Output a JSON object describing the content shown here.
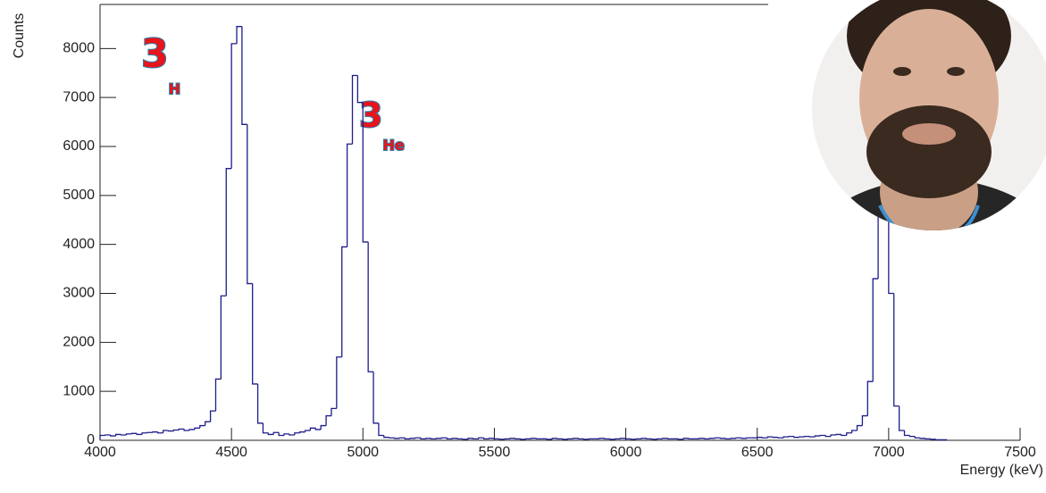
{
  "chart_data": {
    "type": "histogram",
    "ylabel": "Counts",
    "xlabel": "Energy (keV)",
    "annotations": [
      {
        "sup": "3",
        "text": "H"
      },
      {
        "sup": "3",
        "text": "He"
      }
    ],
    "color": "#1c1c8c",
    "bins": [
      4000,
      4020,
      4040,
      4060,
      4080,
      4100,
      4120,
      4140,
      4160,
      4180,
      4200,
      4220,
      4240,
      4260,
      4280,
      4300,
      4320,
      4340,
      4360,
      4380,
      4400,
      4420,
      4440,
      4460,
      4480,
      4500,
      4520,
      4540,
      4560,
      4580,
      4600,
      4620,
      4640,
      4660,
      4680,
      4700,
      4720,
      4740,
      4760,
      4780,
      4800,
      4820,
      4840,
      4860,
      4880,
      4900,
      4920,
      4940,
      4960,
      4980,
      5000,
      5020,
      5040,
      5060,
      5080,
      5100,
      5120,
      5140,
      5160,
      5180,
      5200,
      5220,
      5240,
      5260,
      5280,
      5300,
      5320,
      5340,
      5360,
      5380,
      5400,
      5420,
      5440,
      5460,
      5480,
      5500,
      5520,
      5540,
      5560,
      5580,
      5600,
      5620,
      5640,
      5660,
      5680,
      5700,
      5720,
      5740,
      5760,
      5780,
      5800,
      5820,
      5840,
      5860,
      5880,
      5900,
      5920,
      5940,
      5960,
      5980,
      6000,
      6020,
      6040,
      6060,
      6080,
      6100,
      6120,
      6140,
      6160,
      6180,
      6200,
      6220,
      6240,
      6260,
      6280,
      6300,
      6320,
      6340,
      6360,
      6380,
      6400,
      6420,
      6440,
      6460,
      6480,
      6500,
      6520,
      6540,
      6560,
      6580,
      6600,
      6620,
      6640,
      6660,
      6680,
      6700,
      6720,
      6740,
      6760,
      6780,
      6800,
      6820,
      6840,
      6860,
      6880,
      6900,
      6920,
      6940,
      6960,
      6980,
      7000,
      7020,
      7040,
      7060,
      7080,
      7100,
      7120,
      7140,
      7160,
      7180,
      7200,
      7220
    ],
    "counts": [
      100,
      110,
      90,
      120,
      110,
      130,
      140,
      120,
      150,
      160,
      170,
      150,
      200,
      190,
      210,
      230,
      200,
      220,
      250,
      300,
      380,
      600,
      1250,
      2950,
      5550,
      8100,
      8450,
      6450,
      3200,
      1150,
      350,
      150,
      120,
      160,
      100,
      130,
      110,
      150,
      170,
      200,
      250,
      220,
      300,
      500,
      650,
      1700,
      3950,
      6050,
      7450,
      6900,
      4050,
      1400,
      350,
      100,
      60,
      50,
      40,
      50,
      30,
      40,
      50,
      30,
      40,
      30,
      40,
      50,
      30,
      40,
      30,
      20,
      40,
      30,
      50,
      30,
      40,
      30,
      20,
      30,
      40,
      30,
      20,
      30,
      40,
      30,
      30,
      20,
      40,
      30,
      20,
      30,
      40,
      30,
      20,
      30,
      30,
      40,
      30,
      20,
      30,
      40,
      30,
      20,
      30,
      40,
      30,
      20,
      30,
      40,
      30,
      30,
      20,
      40,
      30,
      30,
      40,
      30,
      40,
      50,
      40,
      30,
      40,
      50,
      40,
      50,
      50,
      60,
      50,
      70,
      60,
      50,
      70,
      80,
      60,
      70,
      80,
      70,
      90,
      100,
      80,
      110,
      120,
      100,
      150,
      200,
      300,
      500,
      1200,
      3300,
      6000,
      6800,
      3000,
      700,
      200,
      100,
      80,
      50,
      40,
      30,
      20,
      10,
      10
    ],
    "xlim": [
      4000,
      7500
    ],
    "ylim": [
      0,
      8900
    ],
    "xticks": [
      4000,
      4500,
      5000,
      5500,
      6000,
      6500,
      7000,
      7500
    ],
    "yticks": [
      0,
      1000,
      2000,
      3000,
      4000,
      5000,
      6000,
      7000,
      8000
    ]
  }
}
